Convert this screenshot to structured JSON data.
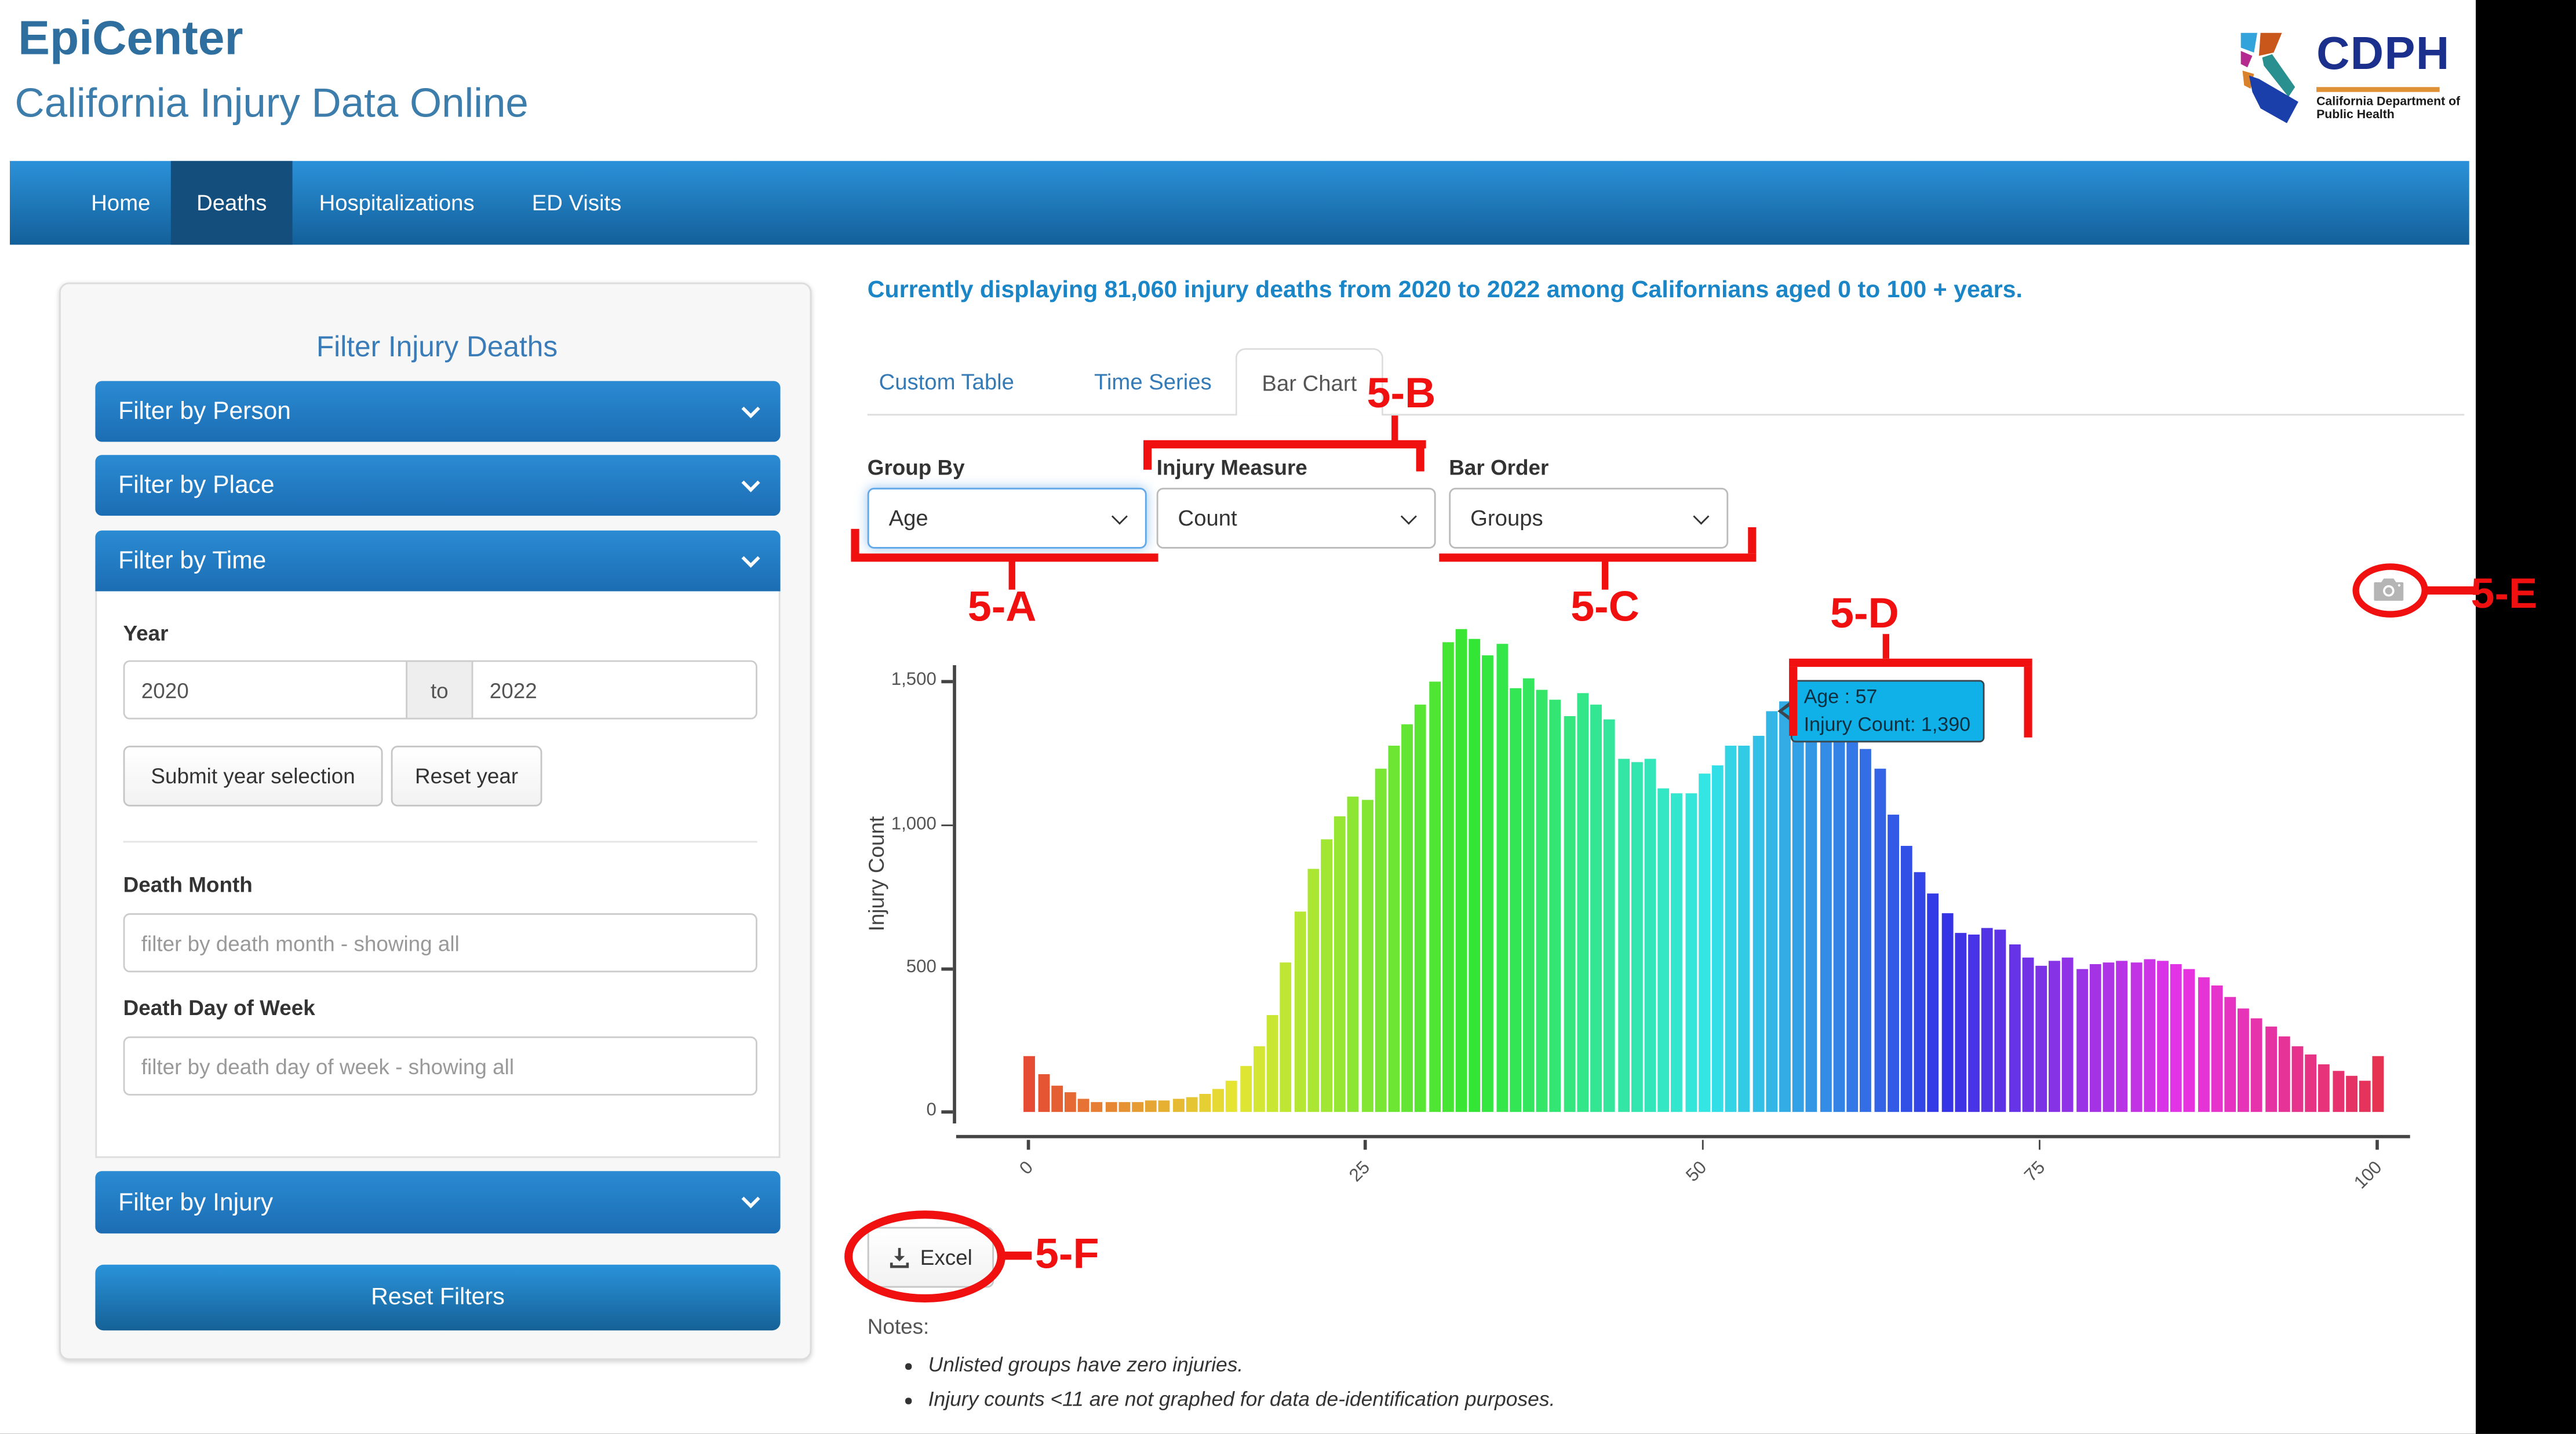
{
  "header": {
    "app_title": "EpiCenter",
    "subtitle": "California Injury Data Online"
  },
  "logo": {
    "acronym": "CDPH",
    "org_line1": "California Department of",
    "org_line2": "Public Health"
  },
  "nav": {
    "items": [
      {
        "label": "Home",
        "active": false
      },
      {
        "label": "Deaths",
        "active": true
      },
      {
        "label": "Hospitalizations",
        "active": false
      },
      {
        "label": "ED Visits",
        "active": false
      }
    ]
  },
  "sidebar": {
    "title": "Filter Injury Deaths",
    "sections": [
      {
        "label": "Filter by Person"
      },
      {
        "label": "Filter by Place"
      },
      {
        "label": "Filter by Time"
      },
      {
        "label": "Filter by Injury"
      }
    ],
    "time_panel": {
      "year_label": "Year",
      "year_from": "2020",
      "year_separator": "to",
      "year_to": "2022",
      "submit_label": "Submit year selection",
      "reset_label": "Reset year",
      "month_label": "Death Month",
      "month_placeholder": "filter by death month - showing all",
      "dow_label": "Death Day of Week",
      "dow_placeholder": "filter by death day of week - showing all"
    },
    "reset_filters_label": "Reset Filters"
  },
  "main": {
    "status": "Currently displaying 81,060 injury deaths from 2020 to 2022 among Californians aged 0 to 100 + years.",
    "tabs": [
      {
        "label": "Custom Table",
        "active": false
      },
      {
        "label": "Time Series",
        "active": false
      },
      {
        "label": "Bar Chart",
        "active": true
      }
    ],
    "controls": [
      {
        "label": "Group By",
        "value": "Age"
      },
      {
        "label": "Injury Measure",
        "value": "Count"
      },
      {
        "label": "Bar Order",
        "value": "Groups"
      }
    ],
    "excel_label": "Excel",
    "notes_title": "Notes:",
    "notes": [
      "Unlisted groups have zero injuries.",
      "Injury counts <11 are not graphed for data de-identification purposes."
    ]
  },
  "chart_data": {
    "type": "bar",
    "title": "",
    "xlabel": "",
    "ylabel": "Injury Count",
    "x_is_age_years": true,
    "x_range": [
      0,
      100
    ],
    "ylim": [
      0,
      1700
    ],
    "grid": false,
    "palette": "rainbow hue by age: red/salmon at 0, orange ~10, green ~30, teal ~47, cyan-blue ~57, blue-violet ~67, purple ~75, magenta ~85, pink ~95, salmon-pink at 100",
    "values": [
      195,
      130,
      92,
      68,
      48,
      38,
      36,
      36,
      38,
      42,
      42,
      45,
      50,
      65,
      80,
      110,
      160,
      230,
      340,
      520,
      700,
      850,
      950,
      1030,
      1100,
      1090,
      1200,
      1280,
      1350,
      1420,
      1500,
      1640,
      1685,
      1650,
      1590,
      1630,
      1480,
      1510,
      1470,
      1440,
      1380,
      1460,
      1420,
      1370,
      1230,
      1220,
      1230,
      1130,
      1110,
      1110,
      1180,
      1210,
      1280,
      1280,
      1310,
      1395,
      1430,
      1390,
      1420,
      1400,
      1370,
      1330,
      1265,
      1195,
      1040,
      930,
      835,
      765,
      695,
      625,
      620,
      645,
      635,
      585,
      540,
      510,
      525,
      540,
      500,
      515,
      520,
      530,
      520,
      535,
      525,
      515,
      500,
      470,
      440,
      400,
      360,
      330,
      300,
      265,
      230,
      200,
      170,
      145,
      125,
      110,
      195
    ],
    "yticks": [
      {
        "v": 0,
        "label": "0"
      },
      {
        "v": 500,
        "label": "500"
      },
      {
        "v": 1000,
        "label": "1,000"
      },
      {
        "v": 1500,
        "label": "1,500"
      }
    ],
    "xticks": [
      {
        "v": 0,
        "label": "0"
      },
      {
        "v": 25,
        "label": "25"
      },
      {
        "v": 50,
        "label": "50"
      },
      {
        "v": 75,
        "label": "75"
      },
      {
        "v": 100,
        "label": "100"
      }
    ],
    "tooltip": {
      "target_age": 57,
      "target_value": 1390,
      "line1": "Age : 57",
      "line2": "Injury Count:  1,390",
      "bg": "#10b1e9"
    }
  },
  "annotations": {
    "color": "#f01010",
    "labels": {
      "a": "5-A",
      "b": "5-B",
      "c": "5-C",
      "d": "5-D",
      "e": "5-E",
      "f": "5-F"
    }
  }
}
